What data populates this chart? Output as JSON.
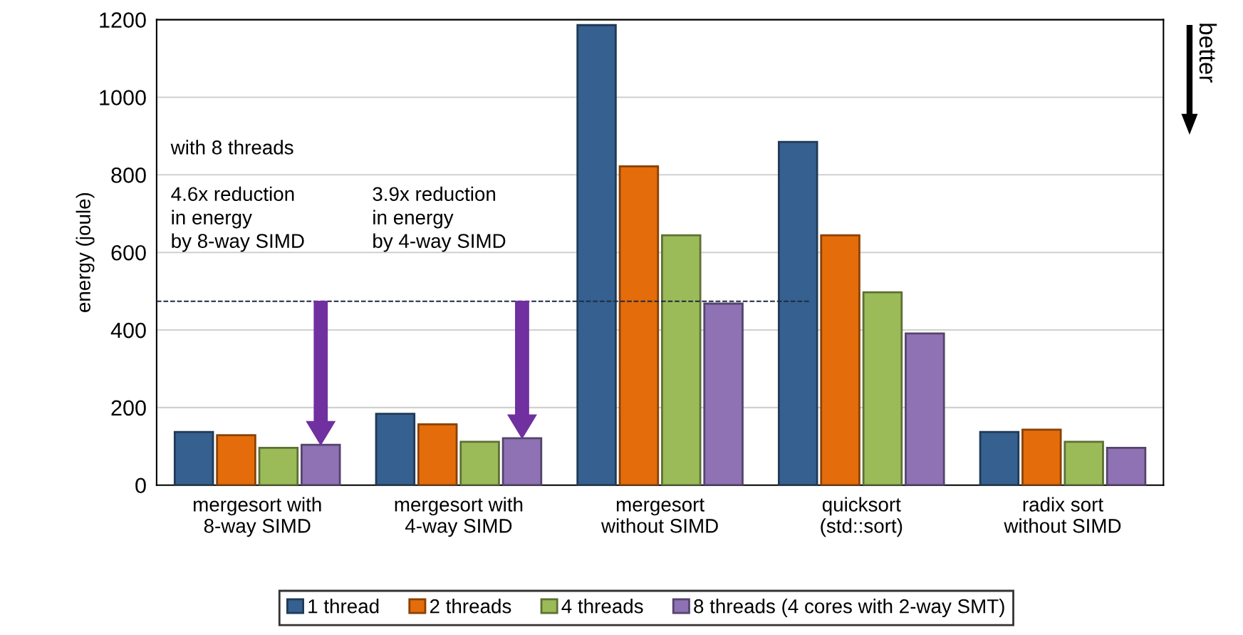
{
  "chart_data": {
    "type": "bar",
    "categories": [
      "mergesort with\n8-way SIMD",
      "mergesort with\n4-way SIMD",
      "mergesort\nwithout SIMD",
      "quicksort\n(std::sort)",
      "radix sort\nwithout SIMD"
    ],
    "series": [
      {
        "name": "1 thread",
        "color": "#35608f",
        "values": [
          137,
          184,
          1186,
          885,
          137
        ]
      },
      {
        "name": "2 threads",
        "color": "#e46c0a",
        "values": [
          129,
          157,
          822,
          644,
          143
        ]
      },
      {
        "name": "4 threads",
        "color": "#9bbb59",
        "values": [
          96,
          112,
          644,
          497,
          112
        ]
      },
      {
        "name": "8 threads (4 cores with 2-way SMT)",
        "color": "#8e72b4",
        "values": [
          104,
          121,
          468,
          391,
          96
        ]
      }
    ],
    "ylabel": "energy (joule)",
    "ylim": [
      0,
      1200
    ],
    "yticks": [
      0,
      200,
      400,
      600,
      800,
      1000,
      1200
    ],
    "grid": "y",
    "legend": "bottom",
    "ref_lines": [
      {
        "axis": "y",
        "value": 474,
        "color": "#1f2a44",
        "line_style": "dashed"
      }
    ],
    "annotations": [
      "with 8 threads",
      "4.6x reduction\nin energy\nby 8-way SIMD",
      "3.9x reduction\nin energy\nby 4-way SIMD",
      "better"
    ]
  }
}
